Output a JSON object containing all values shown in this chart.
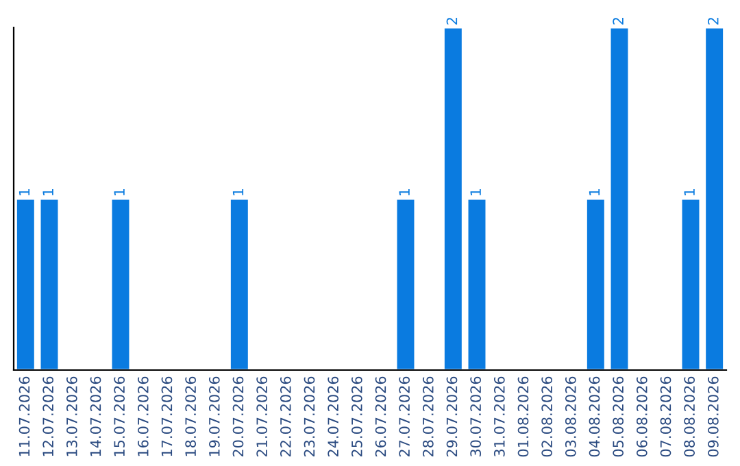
{
  "chart_data": {
    "type": "bar",
    "categories": [
      "11.07.2026",
      "12.07.2026",
      "13.07.2026",
      "14.07.2026",
      "15.07.2026",
      "16.07.2026",
      "17.07.2026",
      "18.07.2026",
      "19.07.2026",
      "20.07.2026",
      "21.07.2026",
      "22.07.2026",
      "23.07.2026",
      "24.07.2026",
      "25.07.2026",
      "26.07.2026",
      "27.07.2026",
      "28.07.2026",
      "29.07.2026",
      "30.07.2026",
      "31.07.2026",
      "01.08.2026",
      "02.08.2026",
      "03.08.2026",
      "04.08.2026",
      "05.08.2026",
      "06.08.2026",
      "07.08.2026",
      "08.08.2026",
      "09.08.2026"
    ],
    "values": [
      1,
      1,
      null,
      null,
      1,
      null,
      null,
      null,
      null,
      1,
      null,
      null,
      null,
      null,
      null,
      null,
      1,
      null,
      2,
      1,
      null,
      null,
      null,
      null,
      1,
      2,
      null,
      null,
      1,
      2
    ],
    "value_labels": [
      "1",
      "1",
      null,
      null,
      "1",
      null,
      null,
      null,
      null,
      "1",
      null,
      null,
      null,
      null,
      null,
      null,
      "1",
      null,
      "2",
      "1",
      null,
      null,
      null,
      null,
      "1",
      "2",
      null,
      null,
      "1",
      "2"
    ],
    "color": "#0a7be0",
    "tick_labels": "x",
    "grid": false
  }
}
